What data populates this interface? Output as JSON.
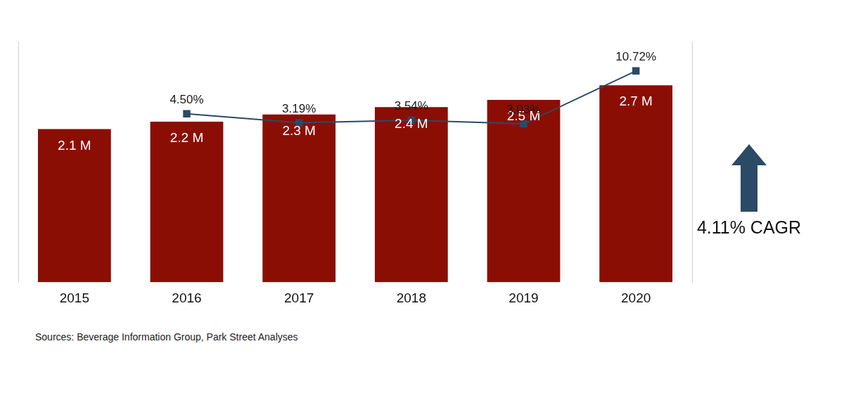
{
  "chart_data": {
    "type": "bar",
    "categories": [
      "2015",
      "2016",
      "2017",
      "2018",
      "2019",
      "2020"
    ],
    "series": [
      {
        "type": "bar",
        "color": "#8b0e04",
        "values": [
          2.1,
          2.2,
          2.3,
          2.4,
          2.5,
          2.7
        ],
        "value_labels": [
          "2.1 M",
          "2.2 M",
          "2.3 M",
          "2.4 M",
          "2.5 M",
          "2.7 M"
        ]
      },
      {
        "type": "line",
        "axis": "y2",
        "color": "#2b4a66",
        "marker": "square",
        "line_style": "solid",
        "values": [
          null,
          4.5,
          3.19,
          3.54,
          3.03,
          10.72
        ],
        "value_labels": [
          null,
          "4.50%",
          "3.19%",
          "3.54%",
          "3.03%",
          "10.72%"
        ]
      }
    ],
    "ylim": [
      0,
      3.3
    ],
    "y2lim": [
      -20,
      15
    ],
    "data_labels": true,
    "tick_labels": "x",
    "grid": false,
    "annotations": [
      "4.11% CAGR"
    ],
    "source": "Sources: Beverage Information Group, Park Street Analyses"
  }
}
